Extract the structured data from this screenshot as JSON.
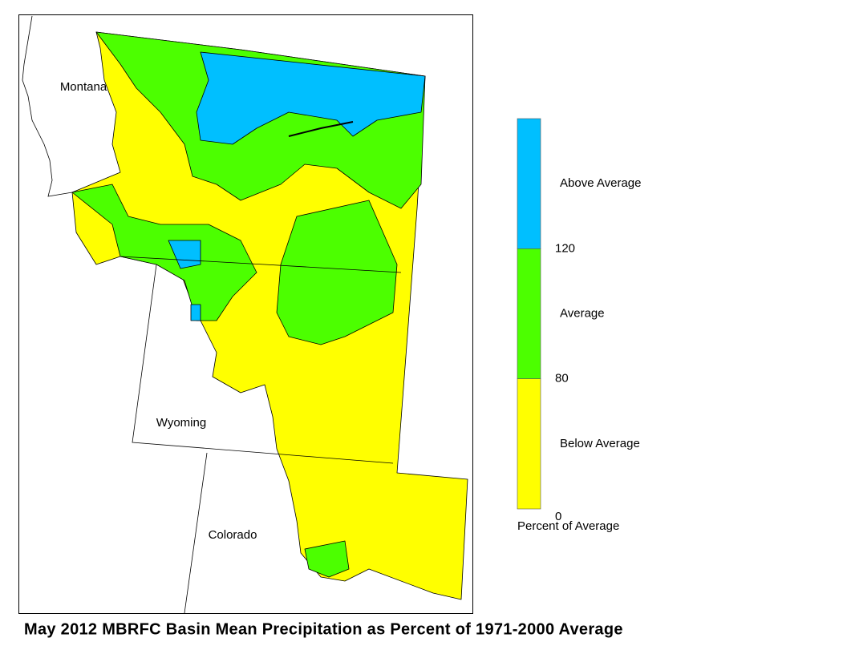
{
  "map": {
    "labels": [
      "Montana",
      "Wyoming",
      "Colorado"
    ]
  },
  "legend": {
    "bands": [
      {
        "label": "Above Average",
        "color": "#00bfff"
      },
      {
        "label": "Average",
        "color": "#4cff00"
      },
      {
        "label": "Below Average",
        "color": "#ffff00"
      }
    ],
    "ticks": [
      120,
      80,
      0
    ],
    "caption": "Percent of Average"
  },
  "title": "May 2012 MBRFC Basin Mean Precipitation as Percent of 1971-2000 Average"
}
